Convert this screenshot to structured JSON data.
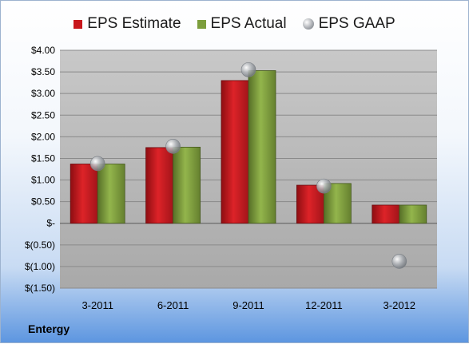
{
  "company_label": "Entergy",
  "chart_data": {
    "type": "bar",
    "categories": [
      "3-2011",
      "6-2011",
      "9-2011",
      "12-2011",
      "3-2012"
    ],
    "series": [
      {
        "name": "EPS Estimate",
        "kind": "bar",
        "color": "#c8171c",
        "values": [
          1.37,
          1.75,
          3.3,
          0.88,
          0.42
        ]
      },
      {
        "name": "EPS Actual",
        "kind": "bar",
        "color": "#7c9e3c",
        "values": [
          1.37,
          1.76,
          3.53,
          0.92,
          0.42
        ]
      },
      {
        "name": "EPS GAAP",
        "kind": "marker",
        "color": "#9ea3a8",
        "values": [
          1.38,
          1.78,
          3.55,
          0.86,
          -0.88
        ]
      }
    ],
    "ylim": [
      -1.5,
      4.0
    ],
    "yticks": [
      4.0,
      3.5,
      3.0,
      2.5,
      2.0,
      1.5,
      1.0,
      0.5,
      0,
      -0.5,
      -1.0,
      -1.5
    ],
    "ytick_labels": [
      "$4.00",
      "$3.50",
      "$3.00",
      "$2.50",
      "$2.00",
      "$1.50",
      "$1.00",
      "$0.50",
      "$-",
      "$(0.50)",
      "$(1.00)",
      "$(1.50)"
    ],
    "grid": true,
    "legend": "top-center"
  }
}
